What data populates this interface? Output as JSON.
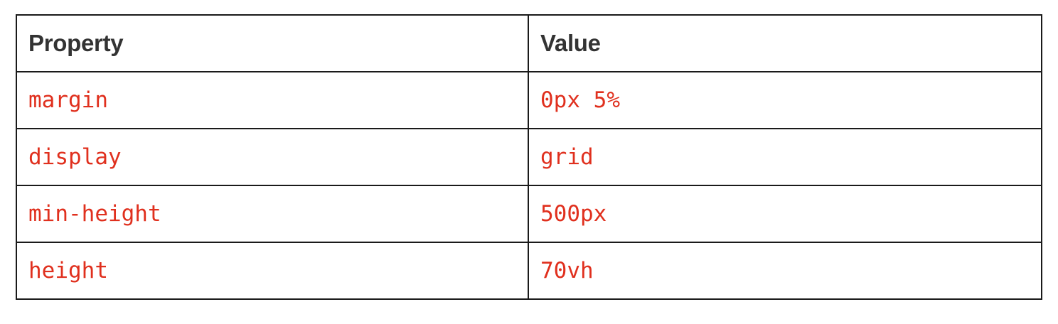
{
  "table": {
    "headers": [
      "Property",
      "Value"
    ],
    "rows": [
      [
        "margin",
        "0px 5%"
      ],
      [
        "display",
        "grid"
      ],
      [
        "min-height",
        "500px"
      ],
      [
        "height",
        "70vh"
      ]
    ]
  },
  "colors": {
    "header_text": "#333333",
    "code_text": "#e0301e",
    "border": "#1a1a1a",
    "background": "#ffffff"
  }
}
